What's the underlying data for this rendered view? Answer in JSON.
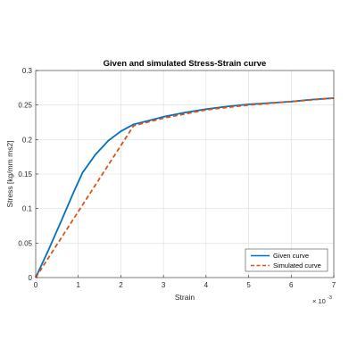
{
  "chart_data": {
    "type": "line",
    "title": "Given and simulated Stress-Strain curve",
    "xlabel": "Strain",
    "ylabel": "Stress [kg/mm ms2]",
    "x_exponent_base": "× 10",
    "x_exponent_power": "-3",
    "xlim": [
      0,
      7
    ],
    "ylim": [
      0,
      0.3
    ],
    "xticks": [
      "0",
      "1",
      "2",
      "3",
      "4",
      "5",
      "6",
      "7"
    ],
    "yticks": [
      "0",
      "0.05",
      "0.1",
      "0.15",
      "0.2",
      "0.25",
      "0.3"
    ],
    "xtick_values": [
      0,
      1,
      2,
      3,
      4,
      5,
      6,
      7
    ],
    "ytick_values": [
      0,
      0.05,
      0.1,
      0.15,
      0.2,
      0.25,
      0.3
    ],
    "grid": true,
    "legend_position": "bottom-right",
    "series": [
      {
        "name": "Given curve",
        "color": "#0072BD",
        "style": "solid",
        "x": [
          0,
          0.3,
          0.6,
          0.9,
          1.1,
          1.4,
          1.7,
          2.0,
          2.3,
          2.7,
          3.0,
          3.5,
          4.0,
          4.5,
          5.0,
          5.5,
          6.0,
          6.5,
          7.0
        ],
        "y": [
          0,
          0.04,
          0.082,
          0.125,
          0.152,
          0.178,
          0.198,
          0.212,
          0.222,
          0.228,
          0.233,
          0.239,
          0.244,
          0.248,
          0.251,
          0.253,
          0.255,
          0.258,
          0.26
        ]
      },
      {
        "name": "Simulated curve",
        "color": "#D95319",
        "style": "dashed",
        "x": [
          0,
          2.3,
          3.0,
          4.0,
          5.0,
          6.0,
          7.0
        ],
        "y": [
          0,
          0.22,
          0.231,
          0.243,
          0.25,
          0.255,
          0.26
        ]
      }
    ]
  }
}
